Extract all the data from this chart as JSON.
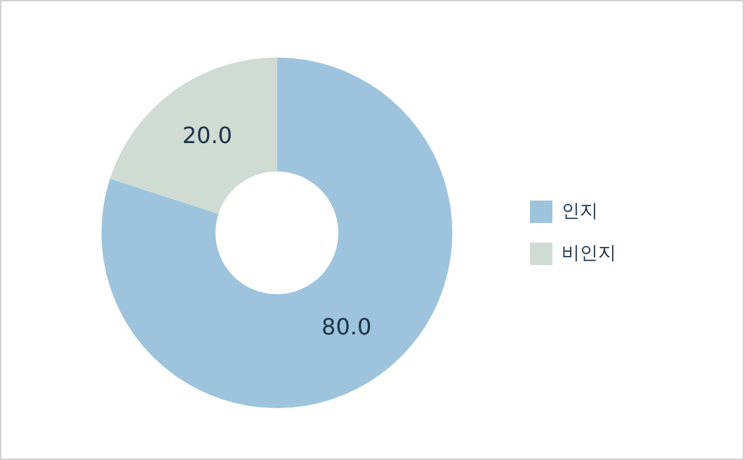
{
  "chart_data": {
    "type": "donut",
    "categories": [
      "인지",
      "비인지"
    ],
    "values": [
      80,
      20
    ],
    "colors": [
      "#9dc4dc",
      "#cfdbd3"
    ],
    "value_labels": [
      "80.0",
      "20.0"
    ],
    "legend": "right"
  }
}
